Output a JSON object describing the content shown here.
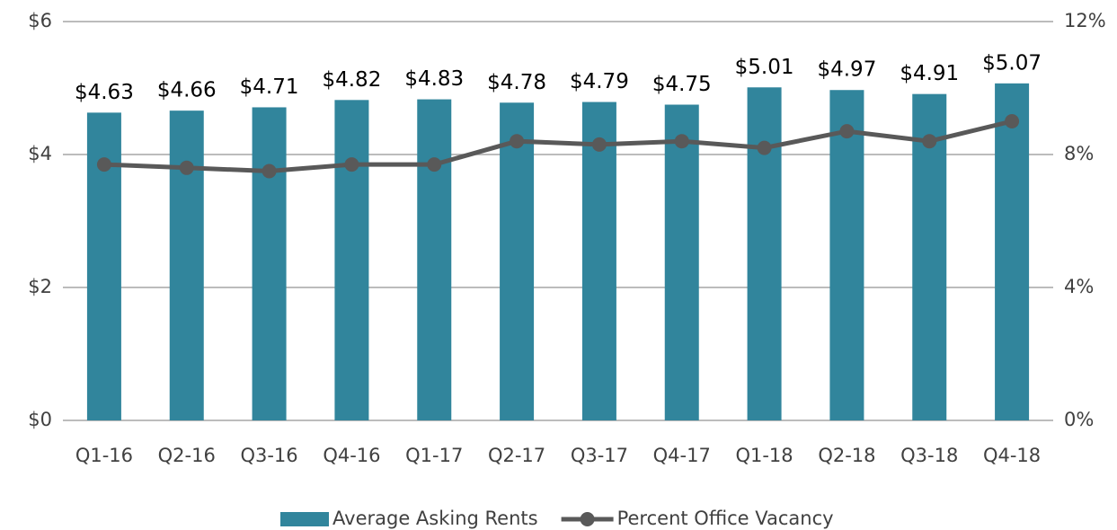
{
  "chart_data": {
    "type": "bar",
    "categories": [
      "Q1-16",
      "Q2-16",
      "Q3-16",
      "Q4-16",
      "Q1-17",
      "Q2-17",
      "Q3-17",
      "Q4-17",
      "Q1-18",
      "Q2-18",
      "Q3-18",
      "Q4-18"
    ],
    "series": [
      {
        "name": "Average Asking Rents",
        "type": "bar",
        "color": "#31859c",
        "values": [
          4.63,
          4.66,
          4.71,
          4.82,
          4.83,
          4.78,
          4.79,
          4.75,
          5.01,
          4.97,
          4.91,
          5.07
        ],
        "value_labels": [
          "$4.63",
          "$4.66",
          "$4.71",
          "$4.82",
          "$4.83",
          "$4.78",
          "$4.79",
          "$4.75",
          "$5.01",
          "$4.97",
          "$4.91",
          "$5.07"
        ]
      },
      {
        "name": "Percent Office Vacancy",
        "type": "line",
        "axis": "y2",
        "color": "#595959",
        "values": [
          7.7,
          7.6,
          7.5,
          7.7,
          7.7,
          8.4,
          8.3,
          8.4,
          8.2,
          8.7,
          8.4,
          9.0
        ]
      }
    ],
    "ylim": [
      0,
      6
    ],
    "yticks": [
      {
        "value": 0,
        "label": "$0"
      },
      {
        "value": 2,
        "label": "$2"
      },
      {
        "value": 4,
        "label": "$4"
      },
      {
        "value": 6,
        "label": "$6"
      }
    ],
    "y2lim": [
      0,
      12
    ],
    "y2ticks": [
      {
        "value": 0,
        "label": "0%"
      },
      {
        "value": 4,
        "label": "4%"
      },
      {
        "value": 8,
        "label": "8%"
      },
      {
        "value": 12,
        "label": "12%"
      }
    ],
    "grid": true,
    "legend": "bottom"
  }
}
